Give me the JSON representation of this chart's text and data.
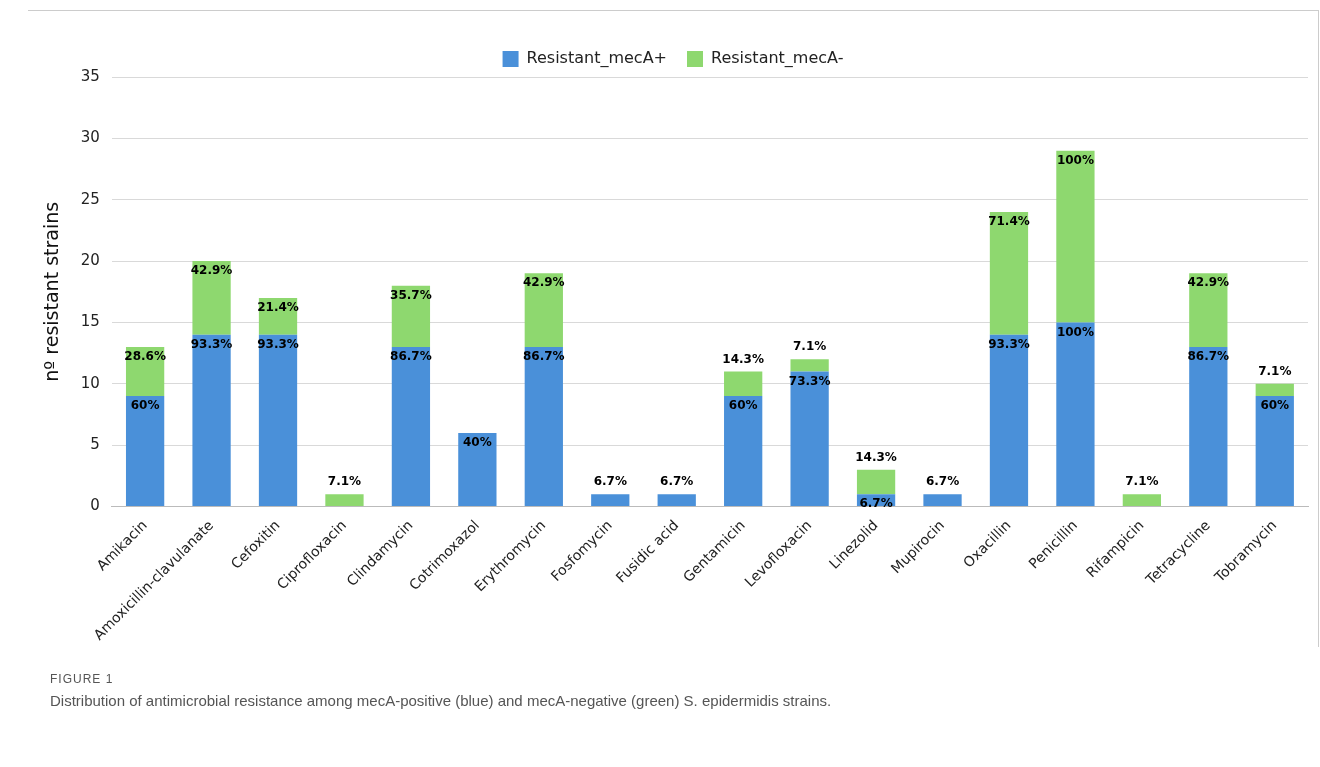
{
  "chart_data": {
    "type": "bar",
    "stacked": true,
    "ylabel": "nº resistant strains",
    "categories": [
      "Amikacin",
      "Amoxicillin-clavulanate",
      "Cefoxitin",
      "Ciprofloxacin",
      "Clindamycin",
      "Cotrimoxazol",
      "Erythromycin",
      "Fosfomycin",
      "Fusidic acid",
      "Gentamicin",
      "Levofloxacin",
      "Linezolid",
      "Mupirocin",
      "Oxacillin",
      "Penicillin",
      "Rifampicin",
      "Tetracycline",
      "Tobramycin"
    ],
    "series": [
      {
        "name": "Resistant_mecA+",
        "color": "#4a90d9",
        "values": [
          9,
          14,
          14,
          0,
          13,
          6,
          13,
          1,
          1,
          9,
          11,
          1,
          1,
          14,
          15,
          0,
          13,
          9
        ]
      },
      {
        "name": "Resistant_mecA-",
        "color": "#8ed86f",
        "values": [
          4,
          6,
          3,
          1,
          5,
          0,
          6,
          0,
          0,
          2,
          1,
          2,
          0,
          10,
          14,
          1,
          6,
          1
        ]
      }
    ],
    "ylim": [
      0,
      35
    ],
    "yticks": [
      0,
      5,
      10,
      15,
      20,
      25,
      30,
      35
    ],
    "grid": "y",
    "legend": "top",
    "annotations": [
      "FIGURE 1",
      "Distribution of antimicrobial resistance among mecA-positive (blue) and mecA-negative (green) S. epidermidis strains.",
      {
        "text": "60%",
        "x": "Amikacin",
        "y": 9
      },
      {
        "text": "28.6%",
        "x": "Amikacin",
        "y": 13
      },
      {
        "text": "93.3%",
        "x": "Amoxicillin-clavulanate",
        "y": 14
      },
      {
        "text": "42.9%",
        "x": "Amoxicillin-clavulanate",
        "y": 20
      },
      {
        "text": "93.3%",
        "x": "Cefoxitin",
        "y": 14
      },
      {
        "text": "21.4%",
        "x": "Cefoxitin",
        "y": 17
      },
      {
        "text": "7.1%",
        "x": "Ciprofloxacin",
        "y": 1
      },
      {
        "text": "86.7%",
        "x": "Clindamycin",
        "y": 13
      },
      {
        "text": "35.7%",
        "x": "Clindamycin",
        "y": 18
      },
      {
        "text": "40%",
        "x": "Cotrimoxazol",
        "y": 6
      },
      {
        "text": "86.7%",
        "x": "Erythromycin",
        "y": 13
      },
      {
        "text": "42.9%",
        "x": "Erythromycin",
        "y": 19
      },
      {
        "text": "6.7%",
        "x": "Fosfomycin",
        "y": 1
      },
      {
        "text": "6.7%",
        "x": "Fusidic acid",
        "y": 1
      },
      {
        "text": "60%",
        "x": "Gentamicin",
        "y": 9
      },
      {
        "text": "14.3%",
        "x": "Gentamicin",
        "y": 11
      },
      {
        "text": "73.3%",
        "x": "Levofloxacin",
        "y": 11
      },
      {
        "text": "7.1%",
        "x": "Levofloxacin",
        "y": 12
      },
      {
        "text": "6.7%",
        "x": "Linezolid",
        "y": 1
      },
      {
        "text": "14.3%",
        "x": "Linezolid",
        "y": 3
      },
      {
        "text": "6.7%",
        "x": "Mupirocin",
        "y": 1
      },
      {
        "text": "93.3%",
        "x": "Oxacillin",
        "y": 14
      },
      {
        "text": "71.4%",
        "x": "Oxacillin",
        "y": 24
      },
      {
        "text": "100%",
        "x": "Penicillin",
        "y": 15
      },
      {
        "text": "100%",
        "x": "Penicillin",
        "y": 29
      },
      {
        "text": "7.1%",
        "x": "Rifampicin",
        "y": 1
      },
      {
        "text": "86.7%",
        "x": "Tetracycline",
        "y": 13
      },
      {
        "text": "42.9%",
        "x": "Tetracycline",
        "y": 19
      },
      {
        "text": "60%",
        "x": "Tobramycin",
        "y": 9
      },
      {
        "text": "7.1%",
        "x": "Tobramycin",
        "y": 10
      }
    ]
  }
}
